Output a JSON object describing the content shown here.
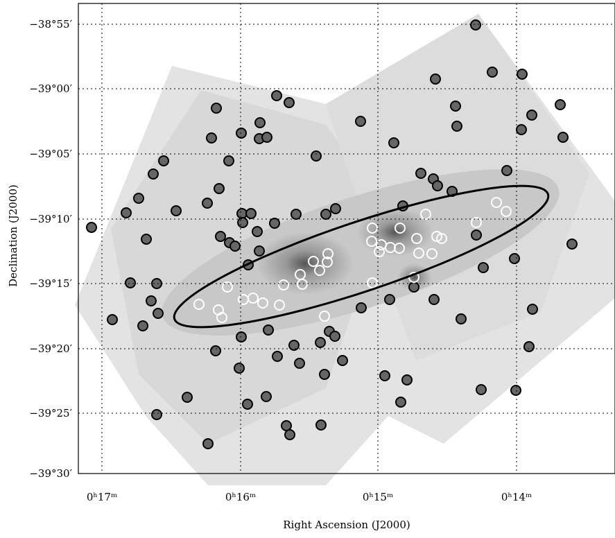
{
  "axes": {
    "x_label": "Right Ascension (J2000)",
    "y_label": "Declination (J2000)",
    "x_ticks": [
      "0ʰ17ᵐ",
      "0ʰ16ᵐ",
      "0ʰ15ᵐ",
      "0ʰ14ᵐ"
    ],
    "y_ticks": [
      "−38°55′",
      "−39°00′",
      "−39°05′",
      "−39°10′",
      "−39°15′",
      "−39°20′",
      "−39°25′",
      "−39°30′"
    ]
  }
}
